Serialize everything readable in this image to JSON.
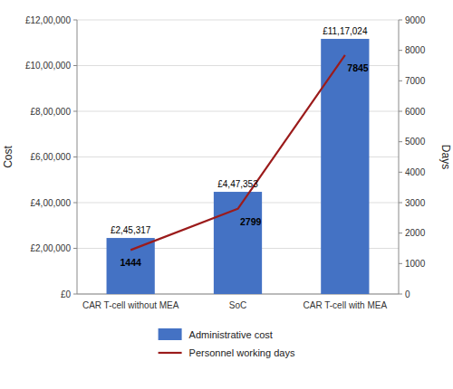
{
  "chart_data": {
    "type": "bar",
    "categories": [
      "CAR T-cell without MEA",
      "SoC",
      "CAR T-cell with MEA"
    ],
    "series": [
      {
        "name": "Administrative cost",
        "type": "bar",
        "color": "#4472C4",
        "values": [
          245317,
          447353,
          1117024
        ],
        "value_labels": [
          "£2,45,317",
          "£4,47,353",
          "£11,17,024"
        ]
      },
      {
        "name": "Personnel working days",
        "type": "line",
        "axis": "y2",
        "color": "#9B1B1B",
        "values": [
          1444,
          2799,
          7845
        ]
      }
    ],
    "ylabel": "Cost",
    "y2label": "Days",
    "ylim": [
      0,
      1200000
    ],
    "yticks": [
      {
        "value": 0,
        "label": "£0"
      },
      {
        "value": 200000,
        "label": "£2,00,000"
      },
      {
        "value": 400000,
        "label": "£4,00,000"
      },
      {
        "value": 600000,
        "label": "£6,00,000"
      },
      {
        "value": 800000,
        "label": "£8,00,000"
      },
      {
        "value": 1000000,
        "label": "£10,00,000"
      },
      {
        "value": 1200000,
        "label": "£12,00,000"
      }
    ],
    "y2lim": [
      0,
      9000
    ],
    "y2ticks": [
      0,
      1000,
      2000,
      3000,
      4000,
      5000,
      6000,
      7000,
      8000,
      9000
    ],
    "grid": true,
    "data_labels": true,
    "legend": "bottom"
  }
}
